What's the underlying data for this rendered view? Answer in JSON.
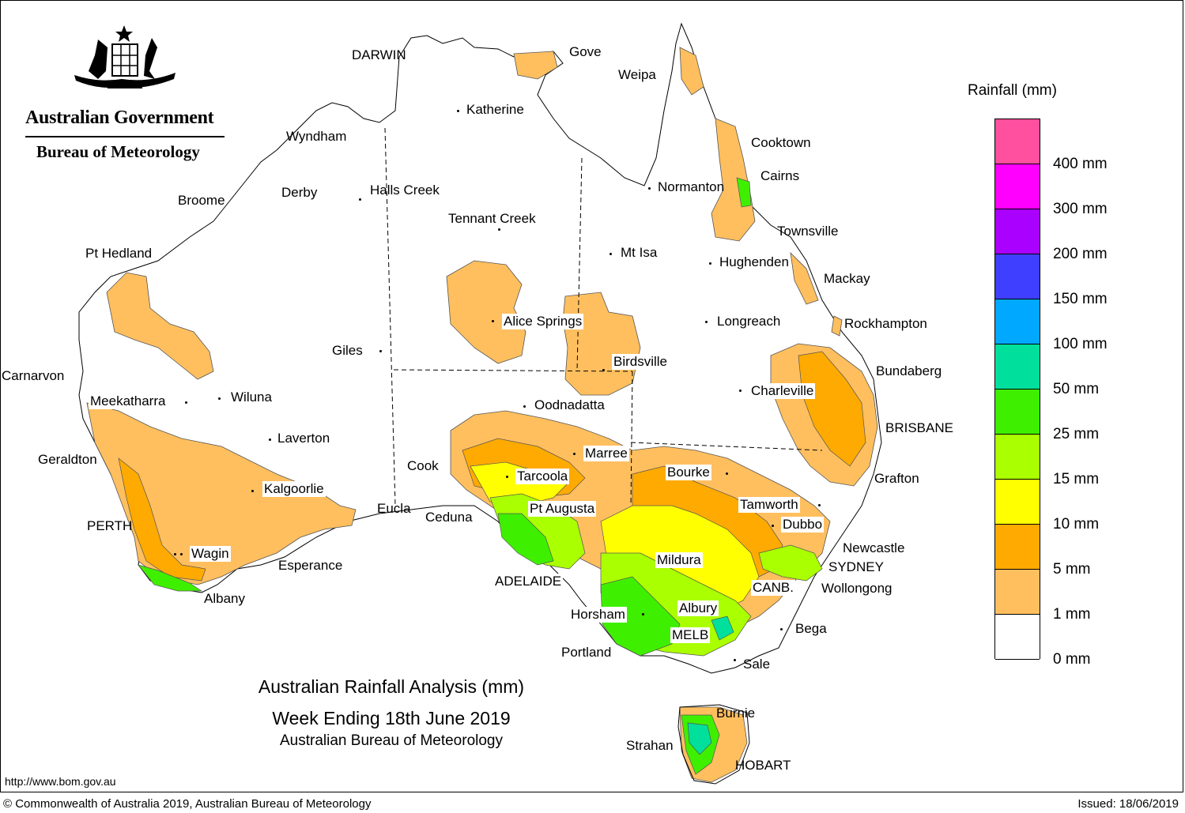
{
  "header": {
    "government": "Australian Government",
    "bureau": "Bureau of Meteorology",
    "emblem_icon": "commonwealth-coat-of-arms-icon"
  },
  "title": {
    "line1": "Australian Rainfall Analysis (mm)",
    "line2": "Week Ending 18th June 2019",
    "line3": "Australian Bureau of Meteorology"
  },
  "legend": {
    "title": "Rainfall (mm)",
    "classes": [
      {
        "label": "",
        "color": "#FF4F9F"
      },
      {
        "label": "400 mm",
        "color": "#FF00FF"
      },
      {
        "label": "300 mm",
        "color": "#AA00FF"
      },
      {
        "label": "200 mm",
        "color": "#3F3FFF"
      },
      {
        "label": "150 mm",
        "color": "#00A8FF"
      },
      {
        "label": "100 mm",
        "color": "#00E09C"
      },
      {
        "label": "50 mm",
        "color": "#3FEF00"
      },
      {
        "label": "25 mm",
        "color": "#AAFF00"
      },
      {
        "label": "15 mm",
        "color": "#FFFF00"
      },
      {
        "label": "10 mm",
        "color": "#FFAA00"
      },
      {
        "label": "5 mm",
        "color": "#FFBF5F"
      },
      {
        "label": "1 mm",
        "color": "#FFFFFF"
      },
      {
        "label": "0 mm",
        "color": ""
      }
    ]
  },
  "places": [
    {
      "name": "DARWIN",
      "boxed": false
    },
    {
      "name": "Gove",
      "boxed": false
    },
    {
      "name": "Weipa",
      "boxed": false
    },
    {
      "name": "Katherine",
      "boxed": false
    },
    {
      "name": "Wyndham",
      "boxed": false
    },
    {
      "name": "Cooktown",
      "boxed": false
    },
    {
      "name": "Cairns",
      "boxed": false
    },
    {
      "name": "Normanton",
      "boxed": false
    },
    {
      "name": "Broome",
      "boxed": false
    },
    {
      "name": "Derby",
      "boxed": false
    },
    {
      "name": "Halls Creek",
      "boxed": false
    },
    {
      "name": "Townsville",
      "boxed": false
    },
    {
      "name": "Tennant Creek",
      "boxed": false
    },
    {
      "name": "Pt Hedland",
      "boxed": false
    },
    {
      "name": "Mt Isa",
      "boxed": false
    },
    {
      "name": "Hughenden",
      "boxed": false
    },
    {
      "name": "Mackay",
      "boxed": false
    },
    {
      "name": "Alice Springs",
      "boxed": true
    },
    {
      "name": "Longreach",
      "boxed": false
    },
    {
      "name": "Rockhampton",
      "boxed": false
    },
    {
      "name": "Giles",
      "boxed": false
    },
    {
      "name": "Birdsville",
      "boxed": true
    },
    {
      "name": "Bundaberg",
      "boxed": false
    },
    {
      "name": "Carnarvon",
      "boxed": false
    },
    {
      "name": "Meekatharra",
      "boxed": true
    },
    {
      "name": "Wiluna",
      "boxed": false
    },
    {
      "name": "Charleville",
      "boxed": true
    },
    {
      "name": "Oodnadatta",
      "boxed": false
    },
    {
      "name": "BRISBANE",
      "boxed": true
    },
    {
      "name": "Laverton",
      "boxed": false
    },
    {
      "name": "Marree",
      "boxed": true
    },
    {
      "name": "Geraldton",
      "boxed": false
    },
    {
      "name": "Cook",
      "boxed": true
    },
    {
      "name": "Tarcoola",
      "boxed": true
    },
    {
      "name": "Bourke",
      "boxed": true
    },
    {
      "name": "Grafton",
      "boxed": false
    },
    {
      "name": "Kalgoorlie",
      "boxed": true
    },
    {
      "name": "Tamworth",
      "boxed": true
    },
    {
      "name": "Eucla",
      "boxed": false
    },
    {
      "name": "Pt Augusta",
      "boxed": true
    },
    {
      "name": "Ceduna",
      "boxed": false
    },
    {
      "name": "PERTH",
      "boxed": false
    },
    {
      "name": "Dubbo",
      "boxed": true
    },
    {
      "name": "Newcastle",
      "boxed": false
    },
    {
      "name": "Wagin",
      "boxed": true
    },
    {
      "name": "Mildura",
      "boxed": true
    },
    {
      "name": "Esperance",
      "boxed": false
    },
    {
      "name": "SYDNEY",
      "boxed": false
    },
    {
      "name": "ADELAIDE",
      "boxed": true
    },
    {
      "name": "CANB.",
      "boxed": true
    },
    {
      "name": "Wollongong",
      "boxed": false
    },
    {
      "name": "Albany",
      "boxed": false
    },
    {
      "name": "Horsham",
      "boxed": true
    },
    {
      "name": "Albury",
      "boxed": true
    },
    {
      "name": "Bega",
      "boxed": false
    },
    {
      "name": "MELB",
      "boxed": true
    },
    {
      "name": "Portland",
      "boxed": false
    },
    {
      "name": "Sale",
      "boxed": false
    },
    {
      "name": "Burnie",
      "boxed": false
    },
    {
      "name": "Strahan",
      "boxed": false
    },
    {
      "name": "HOBART",
      "boxed": false
    }
  ],
  "footer": {
    "url": "http://www.bom.gov.au",
    "copyright": "© Commonwealth of Australia 2019, Australian Bureau of Meteorology",
    "issued": "Issued: 18/06/2019"
  }
}
